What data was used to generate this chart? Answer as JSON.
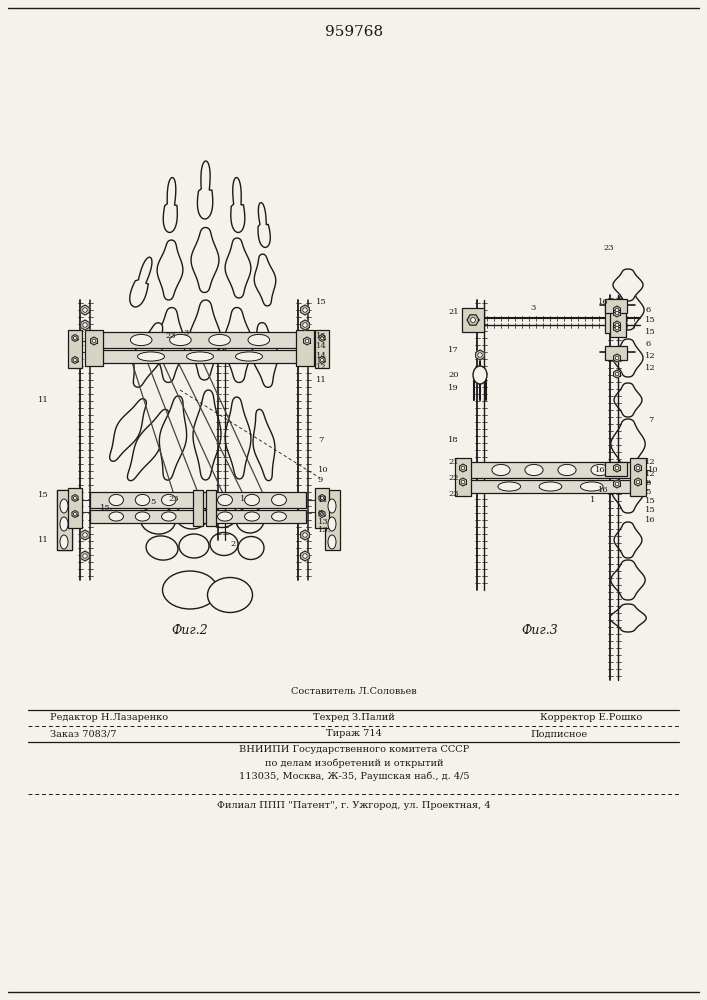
{
  "patent_number": "959768",
  "bg": "#f5f2eb",
  "fig2_caption": "Фиг.2",
  "fig3_caption": "Фиг.3",
  "footer": {
    "line1_left": "Редактор Н.Лазаренко",
    "line1_mid": "Составитель Л.Соловьев",
    "line2_mid": "Техред З.Палий",
    "line2_right": "Корректор Е.Рошко",
    "line3_left": "Заказ 7083/7",
    "line3_mid": "Тираж 714",
    "line3_right": "Подписное",
    "line4": "ВНИИПИ Государственного комитета СССР",
    "line5": "по делам изобретений и открытий",
    "line6": "113035, Москва, Ж-35, Раушская наб., д. 4/5",
    "line7": "Филиал ППП \"Патент\", г. Ужгород, ул. Проектная, 4"
  }
}
